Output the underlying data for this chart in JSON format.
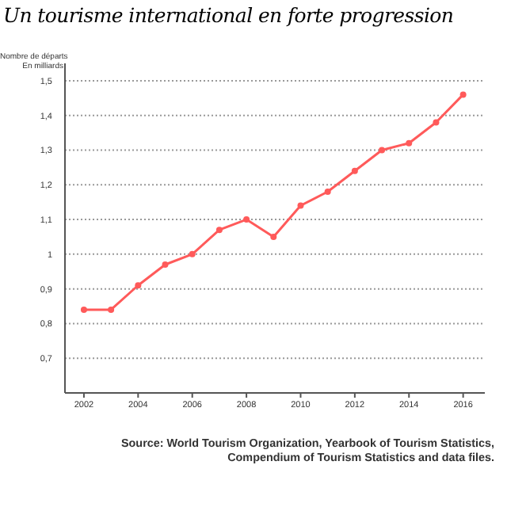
{
  "chart_data": {
    "type": "line",
    "title": "Un tourisme international en forte progression",
    "ylabel": "Nombre de départs\nEn milliards",
    "annotations": [
      "Source: World Tourism Organization, Yearbook of Tourism Statistics,\nCompendium of Tourism Statistics and data files."
    ],
    "x": [
      2002,
      2003,
      2004,
      2005,
      2006,
      2007,
      2008,
      2009,
      2010,
      2011,
      2012,
      2013,
      2014,
      2015,
      2016
    ],
    "series": [
      {
        "color": "#ff5a5a",
        "values": [
          0.84,
          0.84,
          0.91,
          0.97,
          1.0,
          1.07,
          1.1,
          1.05,
          1.14,
          1.18,
          1.24,
          1.3,
          1.32,
          1.38,
          1.46
        ]
      }
    ],
    "xlim": [
      2001.3,
      2016.8
    ],
    "xticks": [
      2002,
      2004,
      2006,
      2008,
      2010,
      2012,
      2014,
      2016
    ],
    "ylim": [
      0.6,
      1.55
    ],
    "yticks": [
      {
        "value": 0.7,
        "label": "0,7"
      },
      {
        "value": 0.8,
        "label": "0,8"
      },
      {
        "value": 0.9,
        "label": "0,9"
      },
      1,
      {
        "value": 1.1,
        "label": "1,1"
      },
      {
        "value": 1.2,
        "label": "1,2"
      },
      {
        "value": 1.3,
        "label": "1,3"
      },
      {
        "value": 1.4,
        "label": "1,4"
      },
      {
        "value": 1.5,
        "label": "1,5"
      }
    ],
    "grid": "y",
    "marker": "circle",
    "line_style": "solid",
    "legend": false
  }
}
